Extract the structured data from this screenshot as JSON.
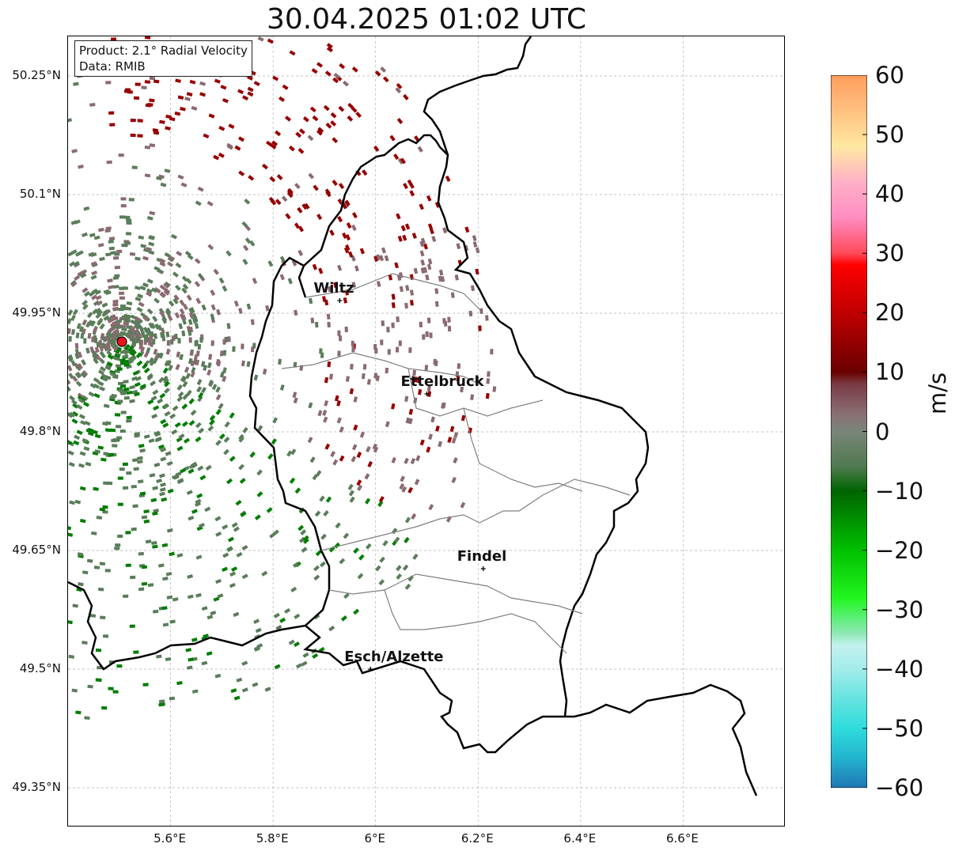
{
  "title": "30.04.2025 01:02 UTC",
  "info": {
    "product": "Product: 2.1° Radial Velocity",
    "data_source": "Data: RMIB"
  },
  "map": {
    "lon_range": [
      5.4,
      6.8
    ],
    "lat_range": [
      49.3,
      50.3
    ],
    "lat_ticks": [
      {
        "value": 50.25,
        "label": "50.25°N"
      },
      {
        "value": 50.1,
        "label": "50.1°N"
      },
      {
        "value": 49.95,
        "label": "49.95°N"
      },
      {
        "value": 49.8,
        "label": "49.8°N"
      },
      {
        "value": 49.65,
        "label": "49.65°N"
      },
      {
        "value": 49.5,
        "label": "49.5°N"
      },
      {
        "value": 49.35,
        "label": "49.35°N"
      }
    ],
    "lon_ticks": [
      {
        "value": 5.6,
        "label": "5.6°E"
      },
      {
        "value": 5.8,
        "label": "5.8°E"
      },
      {
        "value": 6.0,
        "label": "6°E"
      },
      {
        "value": 6.2,
        "label": "6.2°E"
      },
      {
        "value": 6.4,
        "label": "6.4°E"
      },
      {
        "value": 6.6,
        "label": "6.6°E"
      }
    ],
    "radar_site": {
      "lon": 5.505,
      "lat": 49.914,
      "color": "#e8141c"
    },
    "cities": [
      {
        "name": "Wiltz",
        "lon": 5.93,
        "lat": 49.966
      },
      {
        "name": "Ettelbruck",
        "lon": 6.1,
        "lat": 49.848
      },
      {
        "name": "Findel",
        "lon": 6.21,
        "lat": 49.627
      },
      {
        "name": "Esch/Alzette",
        "lon": 5.99,
        "lat": 49.5
      }
    ]
  },
  "colorbar": {
    "unit": "m/s",
    "min": -60,
    "max": 60,
    "ticks": [
      60,
      50,
      40,
      30,
      20,
      10,
      0,
      -10,
      -20,
      -30,
      -40,
      -50,
      -60
    ],
    "tick_labels": [
      "60",
      "50",
      "40",
      "30",
      "20",
      "10",
      "0",
      "−10",
      "−20",
      "−30",
      "−40",
      "−50",
      "−60"
    ],
    "stops": [
      {
        "value": -60,
        "color": "#1f77b4"
      },
      {
        "value": -55,
        "color": "#23b3cf"
      },
      {
        "value": -50,
        "color": "#2edcdc"
      },
      {
        "value": -45,
        "color": "#66e3e0"
      },
      {
        "value": -40,
        "color": "#a3ecea"
      },
      {
        "value": -36,
        "color": "#c3f1f0"
      },
      {
        "value": -34,
        "color": "#8fe8b3"
      },
      {
        "value": -31,
        "color": "#55f06e"
      },
      {
        "value": -28,
        "color": "#22f51e"
      },
      {
        "value": -20,
        "color": "#00c000"
      },
      {
        "value": -10,
        "color": "#006400"
      },
      {
        "value": -6,
        "color": "#4e7a4e"
      },
      {
        "value": 0,
        "color": "#7a8578"
      },
      {
        "value": 3,
        "color": "#8a6e74"
      },
      {
        "value": 8,
        "color": "#7a3a42"
      },
      {
        "value": 10,
        "color": "#6a0000"
      },
      {
        "value": 20,
        "color": "#c00000"
      },
      {
        "value": 28,
        "color": "#ff0000"
      },
      {
        "value": 30,
        "color": "#ff4a5a"
      },
      {
        "value": 36,
        "color": "#ff8cc0"
      },
      {
        "value": 42,
        "color": "#ffb0c8"
      },
      {
        "value": 48,
        "color": "#ffe8a0"
      },
      {
        "value": 54,
        "color": "#ffc080"
      },
      {
        "value": 60,
        "color": "#ff9d5c"
      }
    ]
  },
  "colors": {
    "inbound_green": "#5a7d5a",
    "strong_inbound": "#007d00",
    "outbound_dark_red": "#960000",
    "near_zero_mauve": "#8a6a70",
    "border": "#000000",
    "canton_border": "#808080",
    "grid": "#b0b0b0"
  }
}
